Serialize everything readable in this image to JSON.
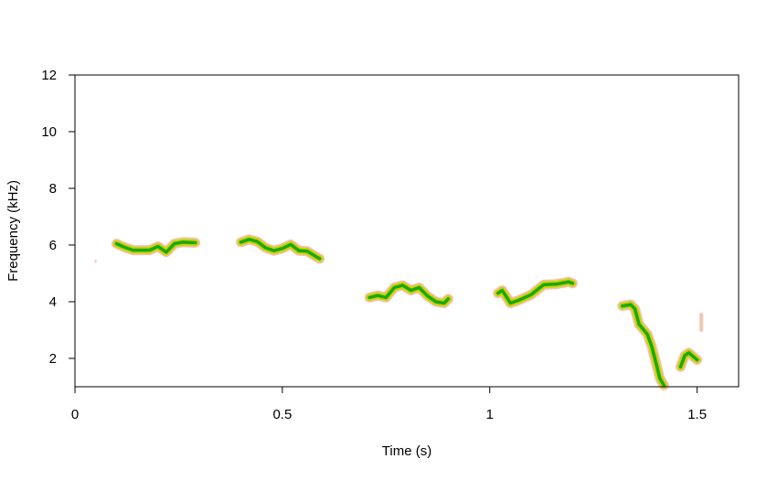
{
  "chart_data": {
    "type": "line",
    "subtype": "spectrogram-trace",
    "xlabel": "Time (s)",
    "ylabel": "Frequency (kHz)",
    "xlim": [
      0,
      1.6
    ],
    "ylim": [
      1,
      12
    ],
    "xticks": [
      0,
      0.5,
      1,
      1.5
    ],
    "xtick_labels": [
      "0",
      "0.5",
      "1",
      "1.5"
    ],
    "yticks": [
      2,
      4,
      6,
      8,
      10,
      12
    ],
    "ytick_labels": [
      "2",
      "4",
      "6",
      "8",
      "10",
      "12"
    ],
    "grid": false,
    "colors": {
      "core": "#1aa800",
      "mid": "#c8d400",
      "halo": "#f0b8a0",
      "frame": "#000000"
    },
    "segments": [
      {
        "points": [
          [
            0.1,
            6.05
          ],
          [
            0.12,
            5.92
          ],
          [
            0.14,
            5.82
          ],
          [
            0.16,
            5.82
          ],
          [
            0.18,
            5.82
          ],
          [
            0.2,
            5.95
          ],
          [
            0.22,
            5.75
          ],
          [
            0.24,
            6.05
          ],
          [
            0.26,
            6.1
          ],
          [
            0.29,
            6.08
          ]
        ]
      },
      {
        "points": [
          [
            0.4,
            6.1
          ],
          [
            0.42,
            6.2
          ],
          [
            0.44,
            6.12
          ],
          [
            0.46,
            5.9
          ],
          [
            0.48,
            5.8
          ],
          [
            0.5,
            5.88
          ],
          [
            0.52,
            6.02
          ],
          [
            0.54,
            5.8
          ],
          [
            0.56,
            5.78
          ],
          [
            0.58,
            5.6
          ],
          [
            0.59,
            5.52
          ]
        ]
      },
      {
        "points": [
          [
            0.71,
            4.15
          ],
          [
            0.73,
            4.22
          ],
          [
            0.75,
            4.15
          ],
          [
            0.77,
            4.5
          ],
          [
            0.79,
            4.58
          ],
          [
            0.81,
            4.4
          ],
          [
            0.83,
            4.5
          ],
          [
            0.85,
            4.2
          ],
          [
            0.87,
            4.0
          ],
          [
            0.89,
            3.95
          ],
          [
            0.9,
            4.1
          ]
        ]
      },
      {
        "points": [
          [
            1.02,
            4.3
          ],
          [
            1.03,
            4.4
          ],
          [
            1.05,
            3.95
          ],
          [
            1.07,
            4.05
          ],
          [
            1.1,
            4.25
          ],
          [
            1.13,
            4.6
          ],
          [
            1.16,
            4.62
          ],
          [
            1.19,
            4.7
          ],
          [
            1.2,
            4.65
          ]
        ]
      },
      {
        "points": [
          [
            1.32,
            3.85
          ],
          [
            1.34,
            3.9
          ],
          [
            1.35,
            3.75
          ],
          [
            1.36,
            3.2
          ],
          [
            1.38,
            2.85
          ],
          [
            1.39,
            2.45
          ],
          [
            1.4,
            1.9
          ],
          [
            1.41,
            1.3
          ],
          [
            1.42,
            1.05
          ]
        ]
      },
      {
        "points": [
          [
            1.46,
            1.7
          ],
          [
            1.47,
            2.1
          ],
          [
            1.48,
            2.2
          ],
          [
            1.5,
            1.95
          ]
        ]
      }
    ],
    "faint_marks": [
      {
        "points": [
          [
            1.51,
            3.55
          ],
          [
            1.51,
            3.0
          ]
        ]
      },
      {
        "points": [
          [
            0.05,
            5.45
          ],
          [
            0.05,
            5.4
          ]
        ]
      }
    ]
  }
}
